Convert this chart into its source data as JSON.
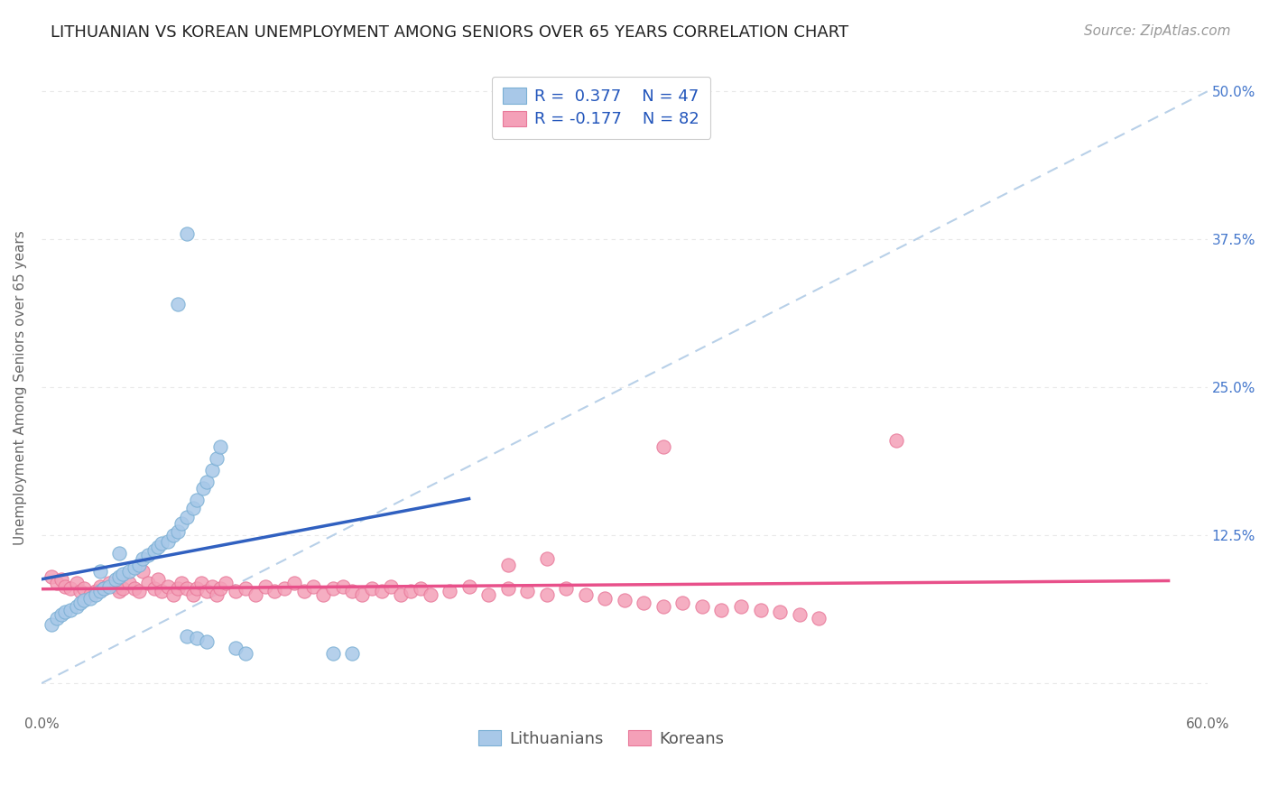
{
  "title": "LITHUANIAN VS KOREAN UNEMPLOYMENT AMONG SENIORS OVER 65 YEARS CORRELATION CHART",
  "source": "Source: ZipAtlas.com",
  "ylabel": "Unemployment Among Seniors over 65 years",
  "xlabel": "",
  "xlim": [
    0.0,
    0.6
  ],
  "ylim": [
    -0.025,
    0.525
  ],
  "xticks": [
    0.0,
    0.1,
    0.2,
    0.3,
    0.4,
    0.5,
    0.6
  ],
  "xticklabels": [
    "0.0%",
    "",
    "",
    "",
    "",
    "",
    "60.0%"
  ],
  "yticks_right": [
    0.0,
    0.125,
    0.25,
    0.375,
    0.5
  ],
  "yticklabels_right": [
    "",
    "12.5%",
    "25.0%",
    "37.5%",
    "50.0%"
  ],
  "legend_label1": "Lithuanians",
  "legend_label2": "Koreans",
  "blue_color": "#a8c8e8",
  "pink_color": "#f4a0b8",
  "blue_edge_color": "#7aafd4",
  "pink_edge_color": "#e87899",
  "blue_line_color": "#3060c0",
  "pink_line_color": "#e8508a",
  "ref_line_color": "#b8d0e8",
  "title_fontsize": 13,
  "source_fontsize": 11,
  "label_fontsize": 11,
  "tick_fontsize": 11,
  "legend_fontsize": 13,
  "blue_scatter": [
    [
      0.005,
      0.05
    ],
    [
      0.008,
      0.055
    ],
    [
      0.01,
      0.058
    ],
    [
      0.012,
      0.06
    ],
    [
      0.015,
      0.062
    ],
    [
      0.018,
      0.065
    ],
    [
      0.02,
      0.068
    ],
    [
      0.022,
      0.07
    ],
    [
      0.025,
      0.072
    ],
    [
      0.028,
      0.075
    ],
    [
      0.03,
      0.078
    ],
    [
      0.03,
      0.095
    ],
    [
      0.032,
      0.08
    ],
    [
      0.035,
      0.082
    ],
    [
      0.038,
      0.088
    ],
    [
      0.04,
      0.09
    ],
    [
      0.04,
      0.11
    ],
    [
      0.042,
      0.092
    ],
    [
      0.045,
      0.095
    ],
    [
      0.048,
      0.098
    ],
    [
      0.05,
      0.1
    ],
    [
      0.052,
      0.105
    ],
    [
      0.055,
      0.108
    ],
    [
      0.058,
      0.112
    ],
    [
      0.06,
      0.115
    ],
    [
      0.062,
      0.118
    ],
    [
      0.065,
      0.12
    ],
    [
      0.068,
      0.125
    ],
    [
      0.07,
      0.128
    ],
    [
      0.072,
      0.135
    ],
    [
      0.075,
      0.14
    ],
    [
      0.078,
      0.148
    ],
    [
      0.08,
      0.155
    ],
    [
      0.083,
      0.165
    ],
    [
      0.085,
      0.17
    ],
    [
      0.088,
      0.18
    ],
    [
      0.09,
      0.19
    ],
    [
      0.092,
      0.2
    ],
    [
      0.07,
      0.32
    ],
    [
      0.075,
      0.04
    ],
    [
      0.08,
      0.038
    ],
    [
      0.085,
      0.035
    ],
    [
      0.1,
      0.03
    ],
    [
      0.105,
      0.025
    ],
    [
      0.15,
      0.025
    ],
    [
      0.16,
      0.025
    ],
    [
      0.075,
      0.38
    ]
  ],
  "pink_scatter": [
    [
      0.005,
      0.09
    ],
    [
      0.008,
      0.085
    ],
    [
      0.01,
      0.088
    ],
    [
      0.012,
      0.082
    ],
    [
      0.015,
      0.08
    ],
    [
      0.018,
      0.085
    ],
    [
      0.02,
      0.078
    ],
    [
      0.022,
      0.08
    ],
    [
      0.025,
      0.075
    ],
    [
      0.028,
      0.078
    ],
    [
      0.03,
      0.082
    ],
    [
      0.032,
      0.08
    ],
    [
      0.035,
      0.085
    ],
    [
      0.038,
      0.082
    ],
    [
      0.04,
      0.078
    ],
    [
      0.042,
      0.08
    ],
    [
      0.045,
      0.085
    ],
    [
      0.048,
      0.08
    ],
    [
      0.05,
      0.078
    ],
    [
      0.052,
      0.095
    ],
    [
      0.055,
      0.085
    ],
    [
      0.058,
      0.08
    ],
    [
      0.06,
      0.088
    ],
    [
      0.062,
      0.078
    ],
    [
      0.065,
      0.082
    ],
    [
      0.068,
      0.075
    ],
    [
      0.07,
      0.08
    ],
    [
      0.072,
      0.085
    ],
    [
      0.075,
      0.08
    ],
    [
      0.078,
      0.075
    ],
    [
      0.08,
      0.08
    ],
    [
      0.082,
      0.085
    ],
    [
      0.085,
      0.078
    ],
    [
      0.088,
      0.082
    ],
    [
      0.09,
      0.075
    ],
    [
      0.092,
      0.08
    ],
    [
      0.095,
      0.085
    ],
    [
      0.1,
      0.078
    ],
    [
      0.105,
      0.08
    ],
    [
      0.11,
      0.075
    ],
    [
      0.115,
      0.082
    ],
    [
      0.12,
      0.078
    ],
    [
      0.125,
      0.08
    ],
    [
      0.13,
      0.085
    ],
    [
      0.135,
      0.078
    ],
    [
      0.14,
      0.082
    ],
    [
      0.145,
      0.075
    ],
    [
      0.15,
      0.08
    ],
    [
      0.155,
      0.082
    ],
    [
      0.16,
      0.078
    ],
    [
      0.165,
      0.075
    ],
    [
      0.17,
      0.08
    ],
    [
      0.175,
      0.078
    ],
    [
      0.18,
      0.082
    ],
    [
      0.185,
      0.075
    ],
    [
      0.19,
      0.078
    ],
    [
      0.195,
      0.08
    ],
    [
      0.2,
      0.075
    ],
    [
      0.21,
      0.078
    ],
    [
      0.22,
      0.082
    ],
    [
      0.23,
      0.075
    ],
    [
      0.24,
      0.08
    ],
    [
      0.25,
      0.078
    ],
    [
      0.26,
      0.075
    ],
    [
      0.27,
      0.08
    ],
    [
      0.28,
      0.075
    ],
    [
      0.29,
      0.072
    ],
    [
      0.3,
      0.07
    ],
    [
      0.31,
      0.068
    ],
    [
      0.32,
      0.065
    ],
    [
      0.33,
      0.068
    ],
    [
      0.34,
      0.065
    ],
    [
      0.35,
      0.062
    ],
    [
      0.36,
      0.065
    ],
    [
      0.37,
      0.062
    ],
    [
      0.38,
      0.06
    ],
    [
      0.39,
      0.058
    ],
    [
      0.4,
      0.055
    ],
    [
      0.32,
      0.2
    ],
    [
      0.44,
      0.205
    ],
    [
      0.24,
      0.1
    ],
    [
      0.26,
      0.105
    ]
  ],
  "background_color": "#ffffff",
  "grid_color": "#e8e8e8"
}
